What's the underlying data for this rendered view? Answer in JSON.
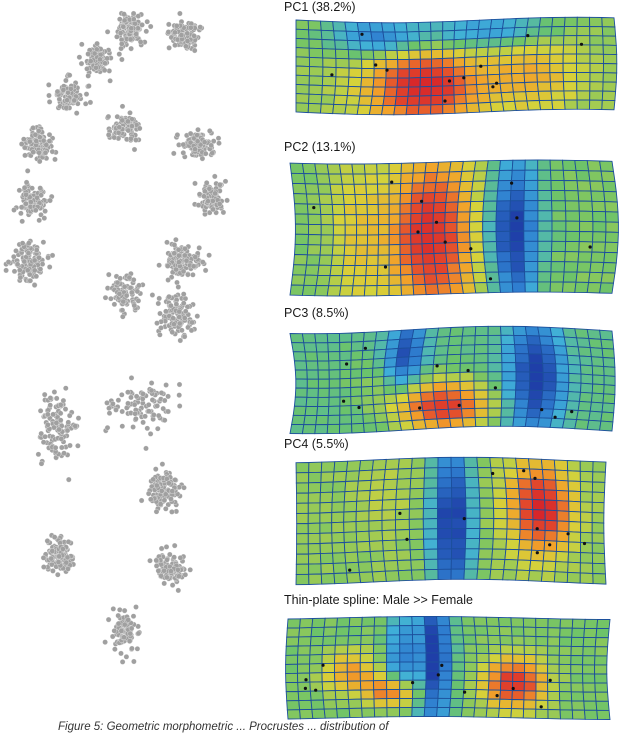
{
  "figure": {
    "panels": [
      {
        "title": "PC1 (38.2%)"
      },
      {
        "title": "PC2 (13.1%)"
      },
      {
        "title": "PC3 (8.5%)"
      },
      {
        "title": "PC4 (5.5%)"
      },
      {
        "title": "Thin-plate spline: Male >> Female"
      }
    ],
    "caption": "Figure 5: Geometric morphometric ... Procrustes ... distribution of",
    "colors": {
      "points": "#a0a0a0",
      "grid_lines": "#1c4f9c",
      "colormap": [
        "#1f3fa8",
        "#2f7fd0",
        "#40b0d8",
        "#6cc36a",
        "#d6d23a",
        "#f2a22a",
        "#e34a2c",
        "#d7262a"
      ]
    },
    "landmark_clusters": 20
  }
}
